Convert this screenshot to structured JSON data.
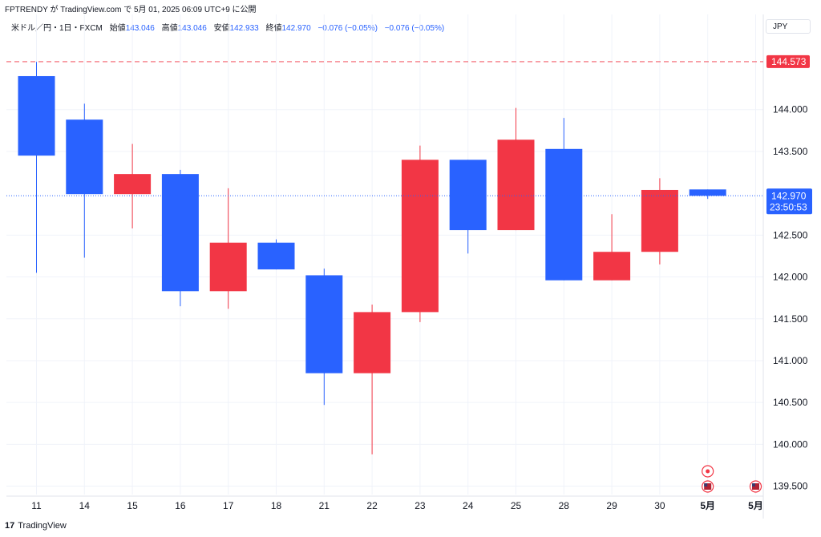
{
  "header": {
    "attribution": "FPTRENDY が TradingView.com で 5月 01, 2025 06:09 UTC+9 に公開"
  },
  "legend": {
    "symbol": "米ドル／円・1日・FXCM",
    "open_label": "始値",
    "open_value": "143.046",
    "high_label": "高値",
    "high_value": "143.046",
    "low_label": "安値",
    "low_value": "142.933",
    "close_label": "終値",
    "close_value": "142.970",
    "change1": "−0.076 (−0.05%)",
    "change2": "−0.076 (−0.05%)"
  },
  "currency_button": "JPY",
  "brand": {
    "logo": "17",
    "name": "TradingView"
  },
  "colors": {
    "up": "#f23645",
    "down": "#2962ff",
    "alert_line": "#f23645",
    "last_price": "#2962ff"
  },
  "chart_data": {
    "type": "candlestick",
    "y_range": [
      139.4,
      144.85
    ],
    "y_ticks": [
      "139.500",
      "140.000",
      "140.500",
      "141.000",
      "141.500",
      "142.000",
      "142.500",
      "143.500",
      "144.000"
    ],
    "y_tick_values": [
      139.5,
      140.0,
      140.5,
      141.0,
      141.5,
      142.0,
      142.5,
      143.5,
      144.0
    ],
    "categories": [
      "11",
      "14",
      "15",
      "16",
      "17",
      "18",
      "21",
      "22",
      "23",
      "24",
      "25",
      "28",
      "29",
      "30",
      "5月"
    ],
    "x_labels": [
      "11",
      "14",
      "15",
      "16",
      "17",
      "18",
      "21",
      "22",
      "23",
      "24",
      "25",
      "28",
      "29",
      "30",
      "5月",
      "5月"
    ],
    "candles": [
      {
        "open": 144.4,
        "high": 144.57,
        "low": 142.05,
        "close": 143.45
      },
      {
        "open": 143.88,
        "high": 144.07,
        "low": 142.23,
        "close": 142.99
      },
      {
        "open": 142.99,
        "high": 143.59,
        "low": 142.58,
        "close": 143.23
      },
      {
        "open": 143.23,
        "high": 143.28,
        "low": 141.65,
        "close": 141.83
      },
      {
        "open": 141.83,
        "high": 143.06,
        "low": 141.62,
        "close": 142.41
      },
      {
        "open": 142.41,
        "high": 142.45,
        "low": 142.09,
        "close": 142.09
      },
      {
        "open": 142.02,
        "high": 142.1,
        "low": 140.47,
        "close": 140.85
      },
      {
        "open": 140.85,
        "high": 141.67,
        "low": 139.88,
        "close": 141.58
      },
      {
        "open": 141.58,
        "high": 143.57,
        "low": 141.46,
        "close": 143.4
      },
      {
        "open": 143.4,
        "high": 143.4,
        "low": 142.28,
        "close": 142.56
      },
      {
        "open": 142.56,
        "high": 144.02,
        "low": 142.56,
        "close": 143.64
      },
      {
        "open": 143.53,
        "high": 143.9,
        "low": 141.96,
        "close": 141.96
      },
      {
        "open": 141.96,
        "high": 142.75,
        "low": 141.96,
        "close": 142.3
      },
      {
        "open": 142.3,
        "high": 143.18,
        "low": 142.15,
        "close": 143.04
      },
      {
        "open": 143.046,
        "high": 143.046,
        "low": 142.933,
        "close": 142.97
      }
    ],
    "alert_level": 144.573,
    "alert_label": "144.573",
    "last_price": 142.97,
    "last_price_label": "142.970",
    "countdown": "23:50:53",
    "grid": true
  }
}
